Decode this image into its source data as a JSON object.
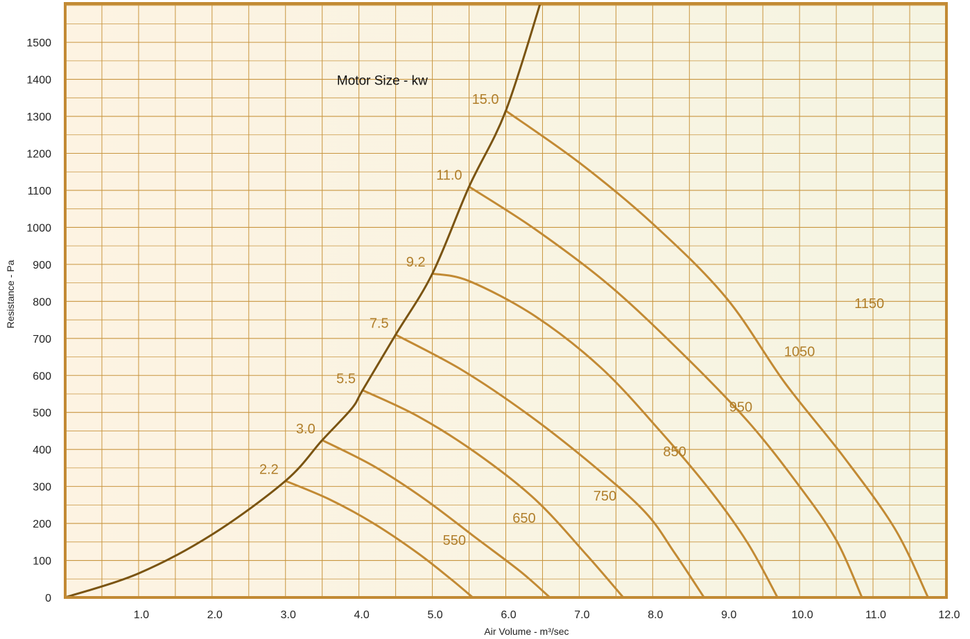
{
  "chart_data": {
    "type": "line",
    "title": "",
    "annotation": "Motor Size - kw",
    "xlabel": "Air Volume - m³/sec",
    "ylabel": "Resistance - Pa",
    "xlim": [
      0,
      12
    ],
    "ylim": [
      0,
      1500
    ],
    "x_ticks": [
      "1.0",
      "2.0",
      "3.0",
      "4.0",
      "5.0",
      "6.0",
      "7.0",
      "8.0",
      "9.0",
      "10.0",
      "11.0",
      "12.0"
    ],
    "y_ticks": [
      "0",
      "100",
      "200",
      "300",
      "400",
      "500",
      "600",
      "700",
      "800",
      "900",
      "1000",
      "1100",
      "1200",
      "1300",
      "1400",
      "1500"
    ],
    "grid": true,
    "colors": {
      "frame": "#c28a34",
      "grid": "#c8953f",
      "system_curve": "#7a5412",
      "fan_curves": "#c28a34",
      "labels": "#b07e2a",
      "bg_left": "#fdf3e2",
      "bg_right": "#f5f4e2"
    },
    "system_curve": {
      "x": [
        0,
        1,
        2,
        3,
        3.5,
        3.9,
        4.05,
        4.5,
        5.0,
        5.5,
        6.0,
        6.5
      ],
      "y": [
        0,
        65,
        170,
        315,
        425,
        510,
        560,
        710,
        875,
        1110,
        1315,
        1625
      ]
    },
    "motor_points": [
      {
        "label": "2.2",
        "x": 3.0,
        "y": 315
      },
      {
        "label": "3.0",
        "x": 3.5,
        "y": 425
      },
      {
        "label": "5.5",
        "x": 4.05,
        "y": 560
      },
      {
        "label": "7.5",
        "x": 4.5,
        "y": 710
      },
      {
        "label": "9.2",
        "x": 5.0,
        "y": 875
      },
      {
        "label": "11.0",
        "x": 5.5,
        "y": 1110
      },
      {
        "label": "15.0",
        "x": 6.0,
        "y": 1315
      }
    ],
    "series": [
      {
        "name": "550",
        "x": [
          3.0,
          3.6,
          4.2,
          4.8,
          5.25,
          5.55
        ],
        "y": [
          315,
          265,
          200,
          120,
          50,
          0
        ]
      },
      {
        "name": "650",
        "x": [
          3.5,
          4.2,
          4.9,
          5.6,
          6.2,
          6.6
        ],
        "y": [
          425,
          355,
          265,
          160,
          70,
          0
        ]
      },
      {
        "name": "750",
        "x": [
          4.05,
          4.8,
          5.6,
          6.4,
          7.1,
          7.6
        ],
        "y": [
          560,
          490,
          390,
          265,
          115,
          0
        ]
      },
      {
        "name": "850",
        "x": [
          4.5,
          5.4,
          6.3,
          7.2,
          7.9,
          8.3,
          8.7
        ],
        "y": [
          710,
          615,
          495,
          355,
          230,
          120,
          0
        ]
      },
      {
        "name": "950",
        "x": [
          5.0,
          5.5,
          6.4,
          7.3,
          8.1,
          8.8,
          9.3,
          9.7
        ],
        "y": [
          875,
          855,
          760,
          620,
          450,
          285,
          145,
          0
        ]
      },
      {
        "name": "1050",
        "x": [
          5.5,
          6.4,
          7.4,
          8.4,
          9.3,
          10.0,
          10.5,
          10.85
        ],
        "y": [
          1110,
          995,
          845,
          660,
          475,
          300,
          155,
          0
        ]
      },
      {
        "name": "1150",
        "x": [
          6.0,
          7.0,
          8.0,
          9.0,
          9.8,
          10.6,
          11.3,
          11.75
        ],
        "y": [
          1315,
          1175,
          1010,
          810,
          580,
          380,
          185,
          0
        ]
      }
    ],
    "series_label_points": [
      {
        "name": "550",
        "x": 5.3,
        "y": 155
      },
      {
        "name": "650",
        "x": 6.25,
        "y": 215
      },
      {
        "name": "750",
        "x": 7.35,
        "y": 275
      },
      {
        "name": "850",
        "x": 8.3,
        "y": 395
      },
      {
        "name": "950",
        "x": 9.2,
        "y": 515
      },
      {
        "name": "1050",
        "x": 10.0,
        "y": 665
      },
      {
        "name": "1150",
        "x": 10.95,
        "y": 795
      }
    ]
  }
}
